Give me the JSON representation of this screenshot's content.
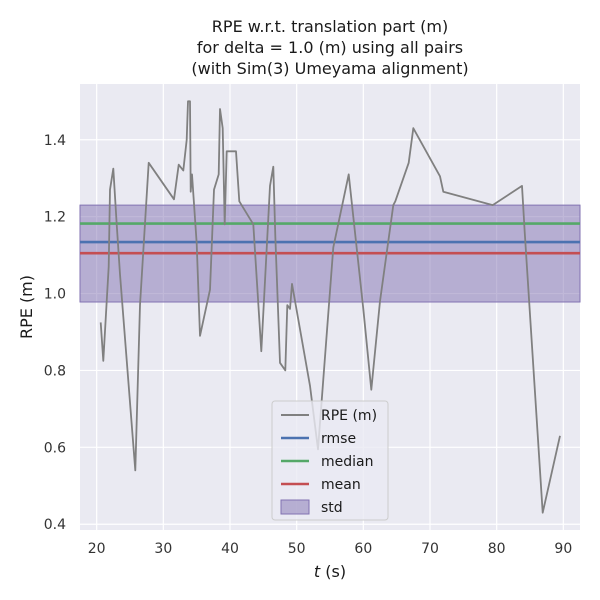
{
  "chart_data": {
    "type": "line",
    "title": [
      "RPE w.r.t. translation part (m)",
      "for delta = 1.0 (m) using all pairs",
      "(with Sim(3) Umeyama alignment)"
    ],
    "xlabel_var": "t",
    "xlabel_unit": " (s)",
    "ylabel": "RPE (m)",
    "xlim": [
      17.5,
      92.5
    ],
    "ylim": [
      0.385,
      1.545
    ],
    "xticks": [
      20,
      30,
      40,
      50,
      60,
      70,
      80,
      90
    ],
    "yticks": [
      0.4,
      0.6,
      0.8,
      1.0,
      1.2,
      1.4
    ],
    "ytick_labels": [
      "0.4",
      "0.6",
      "0.8",
      "1.0",
      "1.2",
      "1.4"
    ],
    "grid": true,
    "legend_position": "lower center",
    "series": [
      {
        "name": "RPE (m)",
        "color": "#808080",
        "x": [
          20.6,
          21.0,
          21.8,
          22.0,
          22.5,
          23.0,
          23.5,
          25.8,
          26.5,
          27.8,
          31.6,
          32.3,
          33.0,
          33.5,
          33.7,
          34.0,
          34.1,
          34.3,
          35.0,
          35.5,
          37.0,
          37.6,
          38.3,
          38.5,
          38.9,
          39.2,
          39.5,
          40.9,
          41.4,
          43.5,
          44.7,
          46.0,
          46.5,
          46.8,
          47.5,
          48.3,
          48.6,
          49.0,
          49.3,
          52.0,
          53.2,
          55.5,
          57.8,
          60.0,
          61.2,
          62.5,
          64.5,
          64.8,
          66.8,
          67.5,
          71.5,
          72.0,
          79.4,
          83.8,
          84.2,
          86.9,
          89.5
        ],
        "y": [
          0.925,
          0.825,
          1.07,
          1.27,
          1.325,
          1.18,
          1.05,
          0.54,
          0.97,
          1.34,
          1.245,
          1.335,
          1.32,
          1.4,
          1.5,
          1.5,
          1.265,
          1.31,
          1.13,
          0.89,
          1.01,
          1.27,
          1.31,
          1.48,
          1.43,
          1.18,
          1.37,
          1.37,
          1.24,
          1.18,
          0.85,
          1.28,
          1.33,
          1.15,
          0.82,
          0.8,
          0.97,
          0.96,
          1.025,
          0.76,
          0.595,
          1.12,
          1.31,
          0.96,
          0.75,
          0.98,
          1.23,
          1.24,
          1.34,
          1.43,
          1.305,
          1.265,
          1.23,
          1.28,
          1.16,
          0.43,
          0.63
        ]
      },
      {
        "name": "rmse",
        "color": "#4c72b0",
        "value": 1.134
      },
      {
        "name": "median",
        "color": "#55a868",
        "value": 1.182
      },
      {
        "name": "mean",
        "color": "#c44e52",
        "value": 1.105
      }
    ],
    "std_band": {
      "name": "std",
      "color": "#8172b2",
      "lower": 0.978,
      "upper": 1.23
    }
  }
}
